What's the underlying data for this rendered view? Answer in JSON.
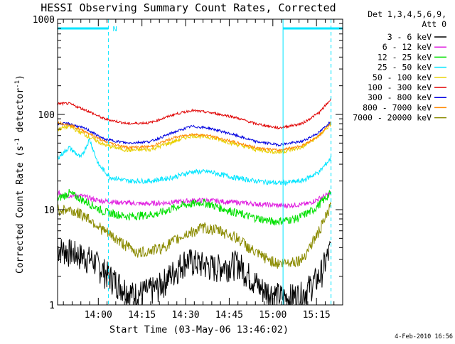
{
  "chart_data": {
    "type": "line",
    "title": "HESSI Observing Summary Count Rates, Corrected",
    "xlabel": "Start Time (03-May-06 13:46:02)",
    "ylabel": "Corrected Count Rate (s⁻¹ detector⁻¹)",
    "ylabel_parts": [
      "Corrected Count Rate (s",
      "-1",
      " detector",
      "-1",
      ")"
    ],
    "x_units": "minutes from 13:46:02",
    "xlim": [
      0,
      98
    ],
    "ylim": [
      1,
      1000
    ],
    "yscale": "log",
    "ytick_labels": [
      {
        "v": 1,
        "t": "1"
      },
      {
        "v": 10,
        "t": "10"
      },
      {
        "v": 100,
        "t": "100"
      },
      {
        "v": 1000,
        "t": "1000"
      }
    ],
    "xtick_labels": [
      {
        "v": 14,
        "t": "14:00"
      },
      {
        "v": 29,
        "t": "14:15"
      },
      {
        "v": 44,
        "t": "14:30"
      },
      {
        "v": 59,
        "t": "14:45"
      },
      {
        "v": 74,
        "t": "15:00"
      },
      {
        "v": 89,
        "t": "15:15"
      }
    ],
    "legend_header": [
      "Det 1,3,4,5,6,9,",
      "Att 0"
    ],
    "legend_placement": "right",
    "footer_date": "4-Feb-2010 16:56",
    "night_marker_label": "N",
    "night_intervals": [
      [
        0,
        17.5
      ],
      [
        77.5,
        98
      ]
    ],
    "vertical_lines": [
      {
        "x": 0,
        "style": "solid"
      },
      {
        "x": 17.5,
        "style": "dashed"
      },
      {
        "x": 77.5,
        "style": "solid"
      },
      {
        "x": 94,
        "style": "dashed"
      }
    ],
    "series": [
      {
        "name": "3 - 6 keV",
        "color": "#000000",
        "x": [
          0,
          6,
          12,
          18,
          26,
          34,
          44,
          54,
          62,
          70,
          78,
          84,
          90,
          94
        ],
        "y": [
          4,
          3.5,
          3,
          2,
          1.3,
          1.5,
          3,
          2.5,
          2.8,
          1.5,
          1.2,
          1.3,
          2,
          4
        ]
      },
      {
        "name": "6 - 12 keV",
        "color": "#e020e0",
        "x": [
          0,
          4,
          8,
          14,
          20,
          30,
          40,
          46,
          52,
          60,
          68,
          78,
          86,
          92,
          94
        ],
        "y": [
          15,
          14,
          14,
          12.5,
          12,
          11.5,
          12,
          12.5,
          12.5,
          12,
          11.5,
          11,
          11.5,
          14,
          15
        ]
      },
      {
        "name": "12 - 25 keV",
        "color": "#00e000",
        "x": [
          0,
          4,
          10,
          16,
          24,
          34,
          42,
          50,
          58,
          66,
          74,
          82,
          88,
          94
        ],
        "y": [
          13,
          15,
          12,
          9.5,
          8.5,
          9,
          11,
          12,
          10,
          8.5,
          7.5,
          8,
          10,
          15
        ]
      },
      {
        "name": "25 - 50 keV",
        "color": "#00e5ff",
        "x": [
          0,
          4,
          8,
          11,
          14,
          18,
          24,
          32,
          40,
          46,
          52,
          60,
          68,
          76,
          84,
          90,
          94
        ],
        "y": [
          35,
          45,
          35,
          55,
          30,
          22,
          20,
          20,
          22,
          25,
          25,
          22,
          20,
          19,
          20,
          25,
          35
        ]
      },
      {
        "name": "50 - 100 keV",
        "color": "#e8d000",
        "x": [
          0,
          4,
          10,
          16,
          24,
          32,
          40,
          46,
          52,
          60,
          68,
          76,
          84,
          90,
          94
        ],
        "y": [
          70,
          75,
          60,
          48,
          42,
          43,
          52,
          60,
          58,
          50,
          43,
          40,
          45,
          60,
          80
        ]
      },
      {
        "name": "100 - 300 keV",
        "color": "#e00000",
        "x": [
          0,
          4,
          10,
          16,
          24,
          32,
          40,
          46,
          52,
          60,
          68,
          76,
          84,
          90,
          94
        ],
        "y": [
          130,
          130,
          110,
          90,
          80,
          82,
          100,
          110,
          105,
          95,
          80,
          72,
          80,
          105,
          145
        ]
      },
      {
        "name": "300 - 800 keV",
        "color": "#0000e0",
        "x": [
          0,
          4,
          10,
          16,
          24,
          32,
          40,
          46,
          52,
          60,
          68,
          76,
          84,
          90,
          94
        ],
        "y": [
          80,
          80,
          70,
          55,
          50,
          52,
          65,
          75,
          72,
          62,
          52,
          48,
          52,
          65,
          85
        ]
      },
      {
        "name": "800 - 7000 keV",
        "color": "#ff8800",
        "x": [
          0,
          4,
          10,
          16,
          24,
          32,
          40,
          46,
          52,
          60,
          68,
          76,
          84,
          90,
          94
        ],
        "y": [
          82,
          78,
          65,
          52,
          45,
          46,
          57,
          62,
          60,
          52,
          45,
          42,
          47,
          60,
          82
        ]
      },
      {
        "name": "7000 - 20000 keV",
        "color": "#8b8b00",
        "x": [
          0,
          4,
          10,
          16,
          22,
          28,
          36,
          44,
          50,
          56,
          62,
          68,
          76,
          84,
          90,
          94
        ],
        "y": [
          10,
          10,
          8.5,
          6,
          4.5,
          3.5,
          4,
          5.5,
          6.5,
          6,
          5,
          3.5,
          2.7,
          3,
          6,
          11
        ]
      }
    ]
  }
}
